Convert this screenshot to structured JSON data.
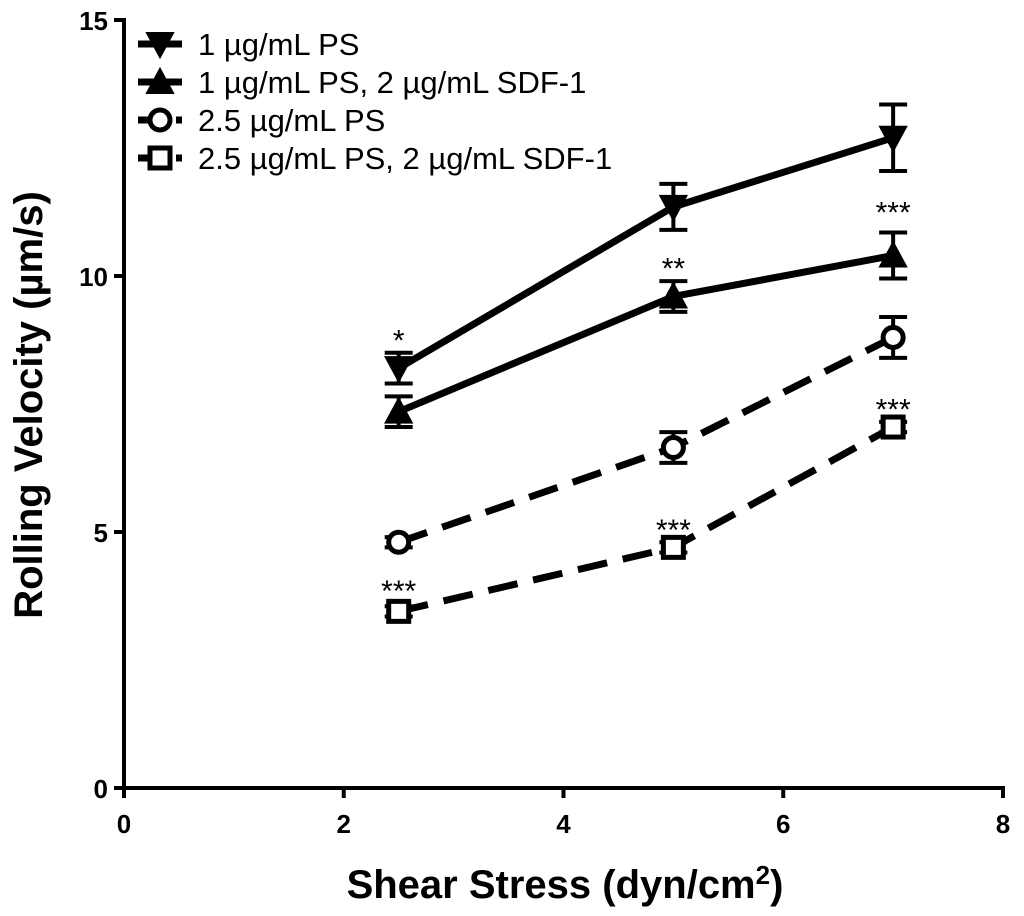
{
  "chart_data": {
    "type": "line",
    "title": "",
    "xlabel": "Shear Stress (dyn/cm",
    "xlabel_superscript": "2",
    "xlabel_close": ")",
    "ylabel": "Rolling Velocity (µm/s)",
    "xlim": [
      0,
      8
    ],
    "ylim": [
      0,
      15
    ],
    "xticks": [
      0,
      2,
      4,
      6,
      8
    ],
    "yticks": [
      0,
      5,
      10,
      15
    ],
    "x_tick_labels": [
      "0",
      "2",
      "4",
      "6",
      "8"
    ],
    "y_tick_labels": [
      "0",
      "5",
      "10",
      "15"
    ],
    "legend_position": "top-left",
    "series": [
      {
        "name": "1 µg/mL PS",
        "marker": "triangle-down",
        "line": "solid",
        "x": [
          2.5,
          5,
          7
        ],
        "values": [
          8.2,
          11.35,
          12.7
        ],
        "errors": [
          0.3,
          0.45,
          0.65
        ]
      },
      {
        "name": "1 µg/mL PS, 2 µg/mL SDF-1",
        "marker": "triangle-up",
        "line": "solid",
        "x": [
          2.5,
          5,
          7
        ],
        "values": [
          7.35,
          9.6,
          10.4
        ],
        "errors": [
          0.3,
          0.3,
          0.45
        ]
      },
      {
        "name": "2.5 µg/mL PS",
        "marker": "circle-open",
        "line": "dashed",
        "x": [
          2.5,
          5,
          7
        ],
        "values": [
          4.8,
          6.65,
          8.8
        ],
        "errors": [
          0.1,
          0.3,
          0.4
        ]
      },
      {
        "name": "2.5 µg/mL PS, 2 µg/mL SDF-1",
        "marker": "square-open",
        "line": "dashed",
        "x": [
          2.5,
          5,
          7
        ],
        "values": [
          3.45,
          4.7,
          7.05
        ],
        "errors": [
          0.1,
          0.1,
          0.1
        ]
      }
    ],
    "annotations": [
      {
        "text": "*",
        "x": 2.5,
        "y": 8.9
      },
      {
        "text": "**",
        "x": 5,
        "y": 10.3
      },
      {
        "text": "***",
        "x": 7,
        "y": 11.4
      },
      {
        "text": "***",
        "x": 7,
        "y": 7.55
      },
      {
        "text": "***",
        "x": 5,
        "y": 5.2
      },
      {
        "text": "***",
        "x": 2.5,
        "y": 4.0
      }
    ]
  }
}
